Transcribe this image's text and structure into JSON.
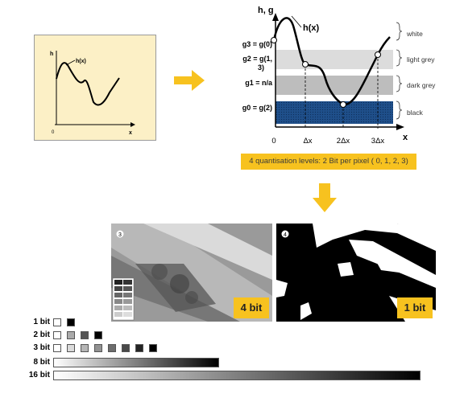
{
  "sketch": {
    "h_label": "h",
    "curve_label": "h(x)",
    "origin_label": "0",
    "x_label": "x"
  },
  "diagram": {
    "axis_label": "h, g",
    "curve_label": "h(x)",
    "levels": [
      {
        "eq": "g3 = g(0)",
        "band": "white"
      },
      {
        "eq": "g2 = g(1, 3)",
        "band": "light grey"
      },
      {
        "eq": "g1 = n/a",
        "band": "dark grey"
      },
      {
        "eq": "g0 = g(2)",
        "band": "black"
      }
    ],
    "x_ticks": [
      "0",
      "Δx",
      "2Δx",
      "3Δx"
    ],
    "x_label": "x",
    "band_colors": {
      "light": "#dcdcdc",
      "dark": "#bdbdbd",
      "black": "#1f4f8a"
    }
  },
  "caption": "4 quantisation levels: 2 Bit per pixel ( 0, 1, 2, 3)",
  "photos": [
    {
      "number": "3",
      "badge": "4 bit"
    },
    {
      "number": "4",
      "badge": "1 bit"
    }
  ],
  "bit_rows": [
    {
      "label": "1 bit",
      "type": "swatches",
      "shades": [
        "#ffffff",
        "#000000"
      ]
    },
    {
      "label": "2 bit",
      "type": "swatches",
      "shades": [
        "#ffffff",
        "#aaaaaa",
        "#555555",
        "#000000"
      ]
    },
    {
      "label": "3 bit",
      "type": "swatches",
      "shades": [
        "#ffffff",
        "#dbdbdb",
        "#b6b6b6",
        "#929292",
        "#6d6d6d",
        "#494949",
        "#242424",
        "#000000"
      ]
    },
    {
      "label": "8 bit",
      "type": "gradient"
    },
    {
      "label": "16 bit",
      "type": "gradient"
    }
  ],
  "colors": {
    "accent": "#f7c21f",
    "sketch_bg": "#fcf0c6"
  }
}
